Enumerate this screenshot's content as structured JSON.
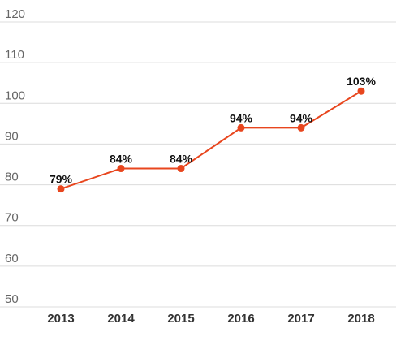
{
  "chart_data": {
    "type": "line",
    "title": "",
    "xlabel": "",
    "ylabel": "",
    "x": [
      "2013",
      "2014",
      "2015",
      "2016",
      "2017",
      "2018"
    ],
    "series": [
      {
        "values": [
          79,
          84,
          84,
          94,
          94,
          103
        ],
        "labels": [
          "79%",
          "84%",
          "84%",
          "94%",
          "94%",
          "103%"
        ],
        "color": "#e8461e"
      }
    ],
    "yticks": [
      "50",
      "60",
      "70",
      "80",
      "90",
      "100",
      "110",
      "120"
    ],
    "ylim": [
      50,
      120
    ],
    "grid": true,
    "legend": "none"
  }
}
